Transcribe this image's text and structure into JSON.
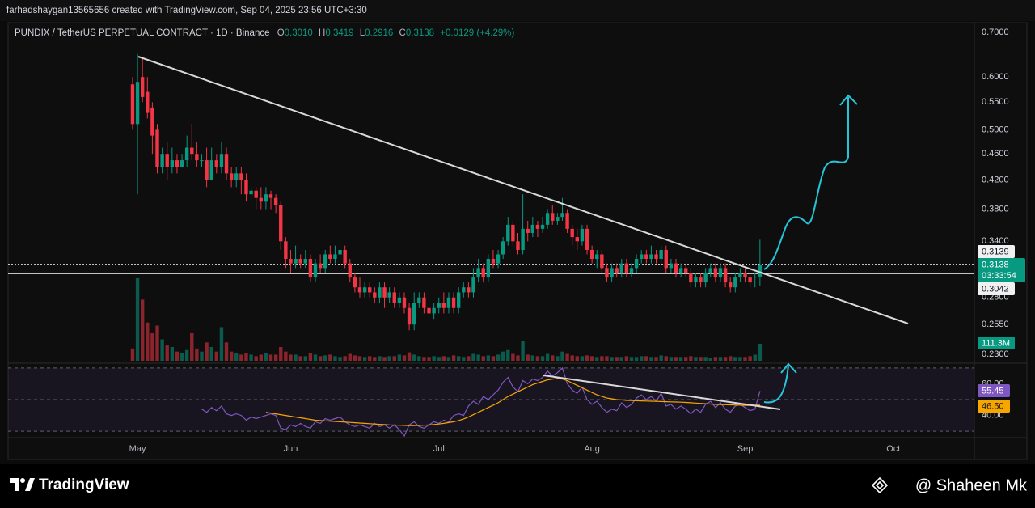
{
  "header": {
    "byline": "farhadshaygan13565656 created with TradingView.com, Sep 04, 2025 23:56 UTC+3:30"
  },
  "chart_data": {
    "type": "candlestick",
    "title": "PUNDIX / TetherUS PERPETUAL CONTRACT · 1D · Binance",
    "ohlc_names": [
      "O",
      "H",
      "L",
      "C"
    ],
    "last_bar_labels": {
      "open": "0.3010",
      "high": "0.3419",
      "low": "0.2916",
      "close": "0.3138"
    },
    "change": "+0.0129 (+4.29%)",
    "countdown": "03:33:54",
    "up_color": "#089981",
    "down_color": "#f23645",
    "log_scale": true,
    "grid": false,
    "ylim": [
      0.22,
      0.72
    ],
    "yticks": [
      {
        "value": 0.7,
        "label": "0.7000"
      },
      {
        "value": 0.6,
        "label": "0.6000"
      },
      {
        "value": 0.55,
        "label": "0.5500"
      },
      {
        "value": 0.5,
        "label": "0.5000"
      },
      {
        "value": 0.46,
        "label": "0.4600"
      },
      {
        "value": 0.42,
        "label": "0.4200"
      },
      {
        "value": 0.38,
        "label": "0.3800"
      },
      {
        "value": 0.34,
        "label": "0.3400"
      },
      {
        "value": 0.28,
        "label": "0.2800"
      },
      {
        "value": 0.255,
        "label": "0.2550"
      },
      {
        "value": 0.23,
        "label": "0.2300"
      }
    ],
    "xlim": [
      -25.2,
      170.4
    ],
    "xticks": [
      {
        "value": 1,
        "label": "May"
      },
      {
        "value": 32,
        "label": "Jun"
      },
      {
        "value": 62,
        "label": "Jul"
      },
      {
        "value": 93,
        "label": "Aug"
      },
      {
        "value": 124,
        "label": "Sep"
      },
      {
        "value": 154,
        "label": "Oct"
      }
    ],
    "price_lines": [
      0.3139,
      0.3042
    ],
    "open": [
      0.585,
      0.51,
      0.6,
      0.57,
      0.54,
      0.5,
      0.44,
      0.46,
      0.44,
      0.45,
      0.44,
      0.45,
      0.47,
      0.46,
      0.45,
      0.45,
      0.42,
      0.45,
      0.44,
      0.46,
      0.43,
      0.42,
      0.43,
      0.42,
      0.4,
      0.405,
      0.395,
      0.39,
      0.4,
      0.395,
      0.385,
      0.34,
      0.32,
      0.315,
      0.32,
      0.315,
      0.32,
      0.3,
      0.315,
      0.31,
      0.325,
      0.32,
      0.325,
      0.33,
      0.315,
      0.3,
      0.29,
      0.285,
      0.29,
      0.285,
      0.28,
      0.29,
      0.28,
      0.285,
      0.275,
      0.28,
      0.27,
      0.255,
      0.275,
      0.28,
      0.27,
      0.265,
      0.27,
      0.275,
      0.27,
      0.28,
      0.27,
      0.285,
      0.29,
      0.285,
      0.3,
      0.31,
      0.3,
      0.32,
      0.315,
      0.325,
      0.34,
      0.36,
      0.34,
      0.33,
      0.355,
      0.35,
      0.36,
      0.355,
      0.36,
      0.375,
      0.365,
      0.37,
      0.375,
      0.355,
      0.345,
      0.34,
      0.355,
      0.33,
      0.32,
      0.325,
      0.31,
      0.3,
      0.31,
      0.305,
      0.315,
      0.305,
      0.31,
      0.32,
      0.325,
      0.32,
      0.325,
      0.32,
      0.33,
      0.31,
      0.315,
      0.305,
      0.31,
      0.305,
      0.295,
      0.3,
      0.295,
      0.305,
      0.31,
      0.3,
      0.31,
      0.295,
      0.29,
      0.3,
      0.305,
      0.3,
      0.3,
      0.301
    ],
    "high": [
      0.6,
      0.65,
      0.64,
      0.6,
      0.55,
      0.51,
      0.47,
      0.48,
      0.47,
      0.46,
      0.46,
      0.49,
      0.51,
      0.48,
      0.46,
      0.47,
      0.47,
      0.46,
      0.48,
      0.47,
      0.44,
      0.44,
      0.44,
      0.43,
      0.41,
      0.41,
      0.41,
      0.41,
      0.405,
      0.4,
      0.39,
      0.345,
      0.33,
      0.335,
      0.325,
      0.33,
      0.325,
      0.32,
      0.325,
      0.33,
      0.335,
      0.335,
      0.335,
      0.335,
      0.32,
      0.305,
      0.3,
      0.295,
      0.295,
      0.29,
      0.295,
      0.295,
      0.29,
      0.29,
      0.285,
      0.285,
      0.275,
      0.285,
      0.285,
      0.285,
      0.275,
      0.275,
      0.28,
      0.285,
      0.285,
      0.285,
      0.29,
      0.295,
      0.295,
      0.31,
      0.32,
      0.315,
      0.325,
      0.33,
      0.33,
      0.345,
      0.37,
      0.365,
      0.35,
      0.4,
      0.365,
      0.37,
      0.365,
      0.37,
      0.38,
      0.385,
      0.375,
      0.395,
      0.38,
      0.36,
      0.355,
      0.36,
      0.36,
      0.335,
      0.33,
      0.33,
      0.315,
      0.315,
      0.315,
      0.32,
      0.32,
      0.315,
      0.325,
      0.33,
      0.33,
      0.335,
      0.33,
      0.335,
      0.335,
      0.32,
      0.32,
      0.315,
      0.315,
      0.31,
      0.305,
      0.305,
      0.31,
      0.315,
      0.315,
      0.315,
      0.315,
      0.3,
      0.305,
      0.31,
      0.31,
      0.305,
      0.305,
      0.3419
    ],
    "low": [
      0.5,
      0.4,
      0.55,
      0.52,
      0.46,
      0.43,
      0.43,
      0.42,
      0.43,
      0.43,
      0.44,
      0.44,
      0.45,
      0.44,
      0.44,
      0.41,
      0.42,
      0.43,
      0.43,
      0.42,
      0.41,
      0.41,
      0.4,
      0.39,
      0.39,
      0.38,
      0.38,
      0.38,
      0.38,
      0.375,
      0.33,
      0.31,
      0.305,
      0.31,
      0.31,
      0.31,
      0.295,
      0.295,
      0.305,
      0.305,
      0.315,
      0.315,
      0.32,
      0.31,
      0.295,
      0.285,
      0.28,
      0.28,
      0.28,
      0.275,
      0.275,
      0.27,
      0.275,
      0.27,
      0.27,
      0.265,
      0.25,
      0.25,
      0.27,
      0.265,
      0.26,
      0.26,
      0.265,
      0.265,
      0.265,
      0.265,
      0.265,
      0.28,
      0.28,
      0.28,
      0.295,
      0.295,
      0.295,
      0.31,
      0.31,
      0.32,
      0.335,
      0.335,
      0.325,
      0.325,
      0.34,
      0.345,
      0.345,
      0.35,
      0.355,
      0.36,
      0.36,
      0.365,
      0.35,
      0.335,
      0.33,
      0.335,
      0.325,
      0.315,
      0.31,
      0.305,
      0.295,
      0.295,
      0.3,
      0.3,
      0.3,
      0.3,
      0.305,
      0.315,
      0.315,
      0.315,
      0.315,
      0.315,
      0.305,
      0.305,
      0.3,
      0.3,
      0.3,
      0.29,
      0.29,
      0.29,
      0.29,
      0.3,
      0.295,
      0.295,
      0.29,
      0.285,
      0.285,
      0.295,
      0.295,
      0.29,
      0.29,
      0.2916
    ],
    "close": [
      0.51,
      0.59,
      0.56,
      0.53,
      0.49,
      0.44,
      0.46,
      0.44,
      0.45,
      0.44,
      0.45,
      0.47,
      0.46,
      0.45,
      0.45,
      0.42,
      0.45,
      0.44,
      0.46,
      0.43,
      0.42,
      0.43,
      0.42,
      0.4,
      0.405,
      0.395,
      0.39,
      0.4,
      0.395,
      0.385,
      0.34,
      0.32,
      0.315,
      0.32,
      0.315,
      0.32,
      0.3,
      0.315,
      0.31,
      0.325,
      0.32,
      0.325,
      0.33,
      0.315,
      0.3,
      0.29,
      0.285,
      0.29,
      0.285,
      0.28,
      0.29,
      0.28,
      0.285,
      0.275,
      0.28,
      0.27,
      0.255,
      0.275,
      0.28,
      0.27,
      0.265,
      0.27,
      0.275,
      0.27,
      0.28,
      0.27,
      0.285,
      0.29,
      0.285,
      0.3,
      0.31,
      0.3,
      0.32,
      0.315,
      0.325,
      0.34,
      0.36,
      0.34,
      0.33,
      0.355,
      0.35,
      0.36,
      0.355,
      0.36,
      0.375,
      0.365,
      0.37,
      0.375,
      0.355,
      0.345,
      0.34,
      0.355,
      0.33,
      0.32,
      0.325,
      0.31,
      0.3,
      0.31,
      0.305,
      0.315,
      0.305,
      0.31,
      0.32,
      0.325,
      0.32,
      0.325,
      0.32,
      0.33,
      0.31,
      0.315,
      0.305,
      0.31,
      0.305,
      0.295,
      0.3,
      0.295,
      0.305,
      0.31,
      0.3,
      0.31,
      0.295,
      0.29,
      0.3,
      0.305,
      0.3,
      0.295,
      0.301,
      0.3138
    ],
    "volume": {
      "ylim": [
        0,
        2200
      ],
      "last_label": "111.3M",
      "values": [
        80,
        540,
        400,
        250,
        180,
        230,
        140,
        100,
        90,
        60,
        50,
        70,
        180,
        80,
        60,
        120,
        90,
        60,
        220,
        120,
        60,
        50,
        40,
        50,
        40,
        30,
        40,
        50,
        40,
        40,
        90,
        60,
        40,
        40,
        30,
        30,
        50,
        40,
        30,
        35,
        40,
        30,
        25,
        30,
        45,
        35,
        30,
        25,
        30,
        25,
        30,
        25,
        30,
        30,
        40,
        35,
        55,
        40,
        30,
        25,
        25,
        30,
        25,
        30,
        25,
        35,
        30,
        25,
        30,
        45,
        40,
        30,
        35,
        30,
        40,
        60,
        70,
        45,
        35,
        130,
        40,
        35,
        30,
        30,
        45,
        35,
        30,
        60,
        45,
        35,
        30,
        30,
        35,
        30,
        25,
        30,
        30,
        25,
        25,
        25,
        30,
        25,
        25,
        30,
        30,
        25,
        25,
        35,
        30,
        25,
        25,
        25,
        25,
        30,
        25,
        25,
        25,
        20,
        25,
        25,
        25,
        30,
        25,
        25,
        25,
        30,
        40,
        111.3
      ]
    },
    "rsi": {
      "ylim": [
        26,
        73
      ],
      "levels": [
        70,
        50,
        30
      ],
      "yticks": [
        {
          "value": 60,
          "label": "60.00"
        },
        {
          "value": 40,
          "label": "40.00"
        }
      ],
      "series": [
        {
          "color": "#7e57c2",
          "last_label": "55.45",
          "values": [
            null,
            null,
            null,
            null,
            null,
            null,
            null,
            null,
            null,
            null,
            null,
            null,
            null,
            null,
            44,
            42,
            45,
            43,
            46,
            41,
            40,
            41,
            40,
            37,
            39,
            38,
            39,
            40,
            41,
            40,
            32,
            31,
            34,
            33,
            35,
            33,
            32,
            36,
            35,
            38,
            37,
            38,
            39,
            36,
            34,
            33,
            34,
            33,
            32,
            35,
            33,
            34,
            32,
            34,
            31,
            27,
            34,
            36,
            33,
            32,
            34,
            36,
            35,
            37,
            36,
            40,
            41,
            40,
            46,
            49,
            47,
            52,
            50,
            53,
            56,
            61,
            64,
            58,
            55,
            62,
            60,
            63,
            62,
            64,
            68,
            65,
            67,
            70,
            60,
            56,
            54,
            58,
            50,
            47,
            49,
            45,
            42,
            44,
            43,
            48,
            45,
            47,
            51,
            53,
            50,
            52,
            49,
            54,
            46,
            47,
            44,
            46,
            44,
            41,
            44,
            42,
            47,
            49,
            45,
            48,
            44,
            42,
            46,
            47,
            45,
            43,
            44,
            55.45
          ]
        },
        {
          "color": "#f7a600",
          "last_label": "46.50",
          "values": [
            null,
            null,
            null,
            null,
            null,
            null,
            null,
            null,
            null,
            null,
            null,
            null,
            null,
            null,
            null,
            null,
            null,
            null,
            null,
            null,
            null,
            null,
            null,
            null,
            null,
            null,
            null,
            42,
            41.5,
            41,
            40.5,
            40,
            39.5,
            39,
            38.5,
            38,
            37.5,
            37,
            36.8,
            36.6,
            36.4,
            36.2,
            36,
            35.8,
            35.6,
            35.4,
            35.2,
            35,
            34.8,
            34.6,
            34.4,
            34.2,
            34,
            33.9,
            33.8,
            33.7,
            33.6,
            33.6,
            33.7,
            33.8,
            34,
            34.3,
            34.6,
            35,
            35.5,
            36,
            36.8,
            37.8,
            39,
            40.5,
            42,
            43.5,
            45,
            46.5,
            48,
            50,
            52,
            53.5,
            55,
            56.5,
            58,
            59.5,
            60.5,
            61.5,
            62.5,
            63,
            63.3,
            63,
            62,
            60.5,
            59,
            57.5,
            56,
            54.5,
            53,
            52,
            51,
            50.5,
            50,
            49.8,
            49.5,
            49.4,
            49.3,
            49.2,
            49.1,
            49,
            48.9,
            48.8,
            48.7,
            48.6,
            48.5,
            48.4,
            48.2,
            48,
            47.8,
            47.6,
            47.4,
            47.2,
            47,
            46.9,
            46.8,
            46.7,
            46.6,
            46.5,
            46.4,
            46.4,
            46.5,
            46.5
          ]
        }
      ]
    }
  },
  "footer": {
    "brand": "TradingView",
    "author": "@ Shaheen Mk"
  }
}
